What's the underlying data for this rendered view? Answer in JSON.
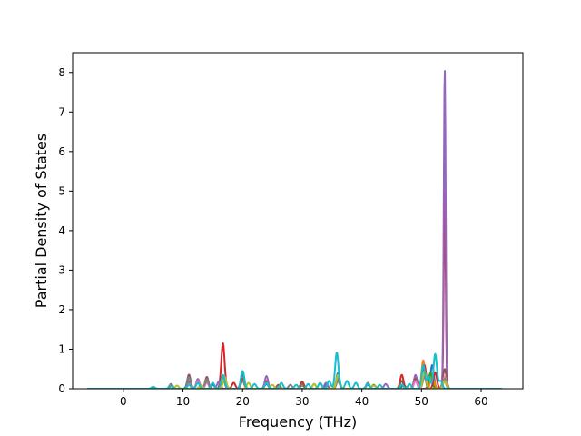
{
  "chart_data": {
    "type": "line",
    "title": "",
    "xlabel": "Frequency (THz)",
    "ylabel": "Partial Density of States",
    "xlim": [
      -8.5,
      67
    ],
    "ylim": [
      0,
      8.5
    ],
    "xticks": [
      "0",
      "10",
      "20",
      "30",
      "40",
      "50",
      "60"
    ],
    "yticks": [
      "0",
      "1",
      "2",
      "3",
      "4",
      "5",
      "6",
      "7",
      "8"
    ],
    "grid": false,
    "legend": "none",
    "x_range_plotted": [
      -6,
      63.5
    ],
    "series": [
      {
        "color": "#1f77b4",
        "peaks": [
          [
            8,
            0.06
          ],
          [
            11,
            0.12
          ],
          [
            15,
            0.1
          ],
          [
            20,
            0.45
          ],
          [
            24,
            0.12
          ],
          [
            30,
            0.08
          ],
          [
            34,
            0.1
          ],
          [
            36,
            0.4
          ],
          [
            41,
            0.1
          ],
          [
            47,
            0.1
          ],
          [
            50.5,
            0.5
          ],
          [
            51.8,
            0.6
          ],
          [
            53.8,
            0.25
          ]
        ]
      },
      {
        "color": "#ff7f0e",
        "peaks": [
          [
            11,
            0.1
          ],
          [
            16.7,
            0.25
          ],
          [
            20,
            0.3
          ],
          [
            30,
            0.1
          ],
          [
            36,
            0.2
          ],
          [
            46.7,
            0.2
          ],
          [
            50.3,
            0.72
          ],
          [
            51.8,
            0.4
          ],
          [
            53.9,
            0.2
          ]
        ]
      },
      {
        "color": "#2ca02c",
        "peaks": [
          [
            11,
            0.15
          ],
          [
            14,
            0.2
          ],
          [
            20,
            0.2
          ],
          [
            32,
            0.12
          ],
          [
            36,
            0.3
          ],
          [
            42,
            0.1
          ],
          [
            49,
            0.2
          ],
          [
            51.5,
            0.4
          ],
          [
            53.9,
            0.2
          ]
        ]
      },
      {
        "color": "#d62728",
        "peaks": [
          [
            8,
            0.08
          ],
          [
            11,
            0.3
          ],
          [
            14,
            0.25
          ],
          [
            16.7,
            1.15
          ],
          [
            18.5,
            0.15
          ],
          [
            20,
            0.35
          ],
          [
            24,
            0.2
          ],
          [
            30,
            0.18
          ],
          [
            36,
            0.25
          ],
          [
            46.7,
            0.35
          ],
          [
            49,
            0.3
          ],
          [
            50.5,
            0.6
          ],
          [
            52.3,
            0.42
          ],
          [
            53.9,
            5.0
          ]
        ]
      },
      {
        "color": "#9467bd",
        "peaks": [
          [
            11,
            0.2
          ],
          [
            12.5,
            0.25
          ],
          [
            16,
            0.18
          ],
          [
            20,
            0.3
          ],
          [
            24,
            0.32
          ],
          [
            34,
            0.15
          ],
          [
            36,
            0.3
          ],
          [
            44,
            0.12
          ],
          [
            49,
            0.35
          ],
          [
            53.9,
            8.1
          ]
        ]
      },
      {
        "color": "#8c564b",
        "peaks": [
          [
            8,
            0.1
          ],
          [
            11,
            0.36
          ],
          [
            14,
            0.3
          ],
          [
            16.7,
            0.3
          ],
          [
            20,
            0.25
          ],
          [
            26,
            0.1
          ],
          [
            30,
            0.15
          ],
          [
            36,
            0.2
          ],
          [
            46.7,
            0.2
          ],
          [
            49,
            0.25
          ],
          [
            50.5,
            0.4
          ],
          [
            53.9,
            0.5
          ]
        ]
      },
      {
        "color": "#e377c2",
        "peaks": [
          [
            11,
            0.12
          ],
          [
            12.5,
            0.2
          ],
          [
            14,
            0.15
          ],
          [
            20,
            0.2
          ],
          [
            24,
            0.15
          ],
          [
            36,
            0.2
          ],
          [
            49,
            0.2
          ],
          [
            50.5,
            0.35
          ],
          [
            53.9,
            0.3
          ]
        ]
      },
      {
        "color": "#7f7f7f",
        "peaks": [
          [
            8,
            0.12
          ],
          [
            11,
            0.3
          ],
          [
            14,
            0.25
          ],
          [
            20,
            0.2
          ],
          [
            28,
            0.1
          ],
          [
            36,
            0.2
          ],
          [
            41,
            0.15
          ],
          [
            50.5,
            0.3
          ],
          [
            53.9,
            0.25
          ]
        ]
      },
      {
        "color": "#bcbd22",
        "peaks": [
          [
            9,
            0.08
          ],
          [
            13,
            0.1
          ],
          [
            17,
            0.3
          ],
          [
            21,
            0.15
          ],
          [
            25,
            0.1
          ],
          [
            32,
            0.12
          ],
          [
            36,
            0.35
          ],
          [
            42,
            0.08
          ],
          [
            50.5,
            0.45
          ],
          [
            53.9,
            0.2
          ]
        ]
      },
      {
        "color": "#17becf",
        "peaks": [
          [
            5,
            0.05
          ],
          [
            8,
            0.06
          ],
          [
            11,
            0.1
          ],
          [
            12.5,
            0.15
          ],
          [
            15,
            0.15
          ],
          [
            16.7,
            0.35
          ],
          [
            20,
            0.45
          ],
          [
            22,
            0.12
          ],
          [
            24,
            0.15
          ],
          [
            26.5,
            0.15
          ],
          [
            29,
            0.1
          ],
          [
            31,
            0.12
          ],
          [
            33,
            0.15
          ],
          [
            34.5,
            0.2
          ],
          [
            35.8,
            0.92
          ],
          [
            37.5,
            0.2
          ],
          [
            39,
            0.15
          ],
          [
            41,
            0.12
          ],
          [
            43,
            0.1
          ],
          [
            46.7,
            0.1
          ],
          [
            48,
            0.12
          ],
          [
            50.3,
            0.6
          ],
          [
            51.2,
            0.3
          ],
          [
            52.3,
            0.88
          ],
          [
            53.2,
            0.2
          ]
        ]
      }
    ]
  }
}
